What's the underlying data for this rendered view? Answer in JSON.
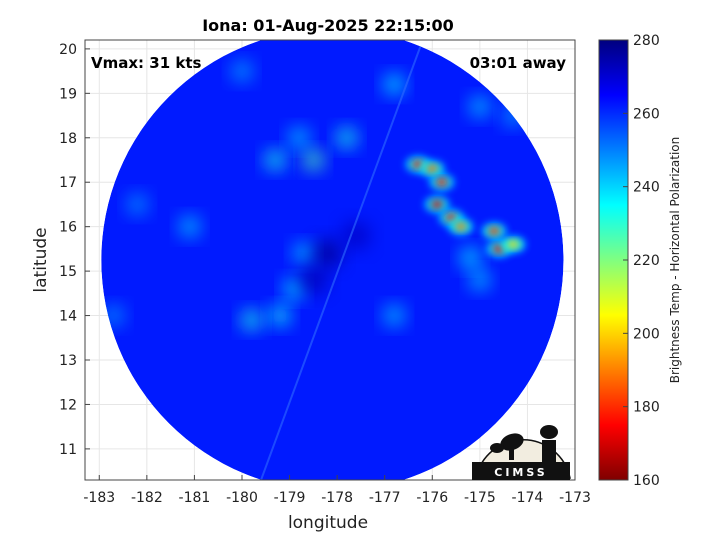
{
  "chart_data": {
    "type": "heatmap",
    "title": "Iona: 01-Aug-2025 22:15:00",
    "xlabel": "longitude",
    "ylabel": "latitude",
    "x_ticks": [
      -183,
      -182,
      -181,
      -180,
      -179,
      -178,
      -177,
      -176,
      -175,
      -174,
      -173
    ],
    "y_ticks": [
      11,
      12,
      13,
      14,
      15,
      16,
      17,
      18,
      19,
      20
    ],
    "xlim": [
      -183.3,
      -173
    ],
    "ylim": [
      10.3,
      20.2
    ],
    "colorbar": {
      "label": "Brightness Temp - Horizontal Polarization",
      "ticks": [
        160,
        180,
        200,
        220,
        240,
        260,
        280
      ],
      "range": [
        160,
        280
      ],
      "colormap": "jet"
    },
    "annotations": {
      "vmax": "Vmax: 31 kts",
      "time_away": "03:01 away"
    },
    "swath_center": [
      -178.1,
      15.25
    ],
    "swath_radius_deg": 5.2,
    "background_temp": 262,
    "features": [
      {
        "lon": -176.8,
        "lat": 19.2,
        "temp": 236
      },
      {
        "lon": -175.0,
        "lat": 18.7,
        "temp": 240
      },
      {
        "lon": -174.3,
        "lat": 18.5,
        "temp": 244
      },
      {
        "lon": -176.3,
        "lat": 17.4,
        "temp": 178
      },
      {
        "lon": -176.0,
        "lat": 17.3,
        "temp": 188
      },
      {
        "lon": -175.8,
        "lat": 17.0,
        "temp": 176
      },
      {
        "lon": -175.9,
        "lat": 16.5,
        "temp": 172
      },
      {
        "lon": -175.6,
        "lat": 16.2,
        "temp": 178
      },
      {
        "lon": -175.4,
        "lat": 16.0,
        "temp": 190
      },
      {
        "lon": -174.7,
        "lat": 15.9,
        "temp": 182
      },
      {
        "lon": -174.6,
        "lat": 15.5,
        "temp": 174
      },
      {
        "lon": -174.3,
        "lat": 15.6,
        "temp": 200
      },
      {
        "lon": -175.2,
        "lat": 15.3,
        "temp": 236
      },
      {
        "lon": -175.0,
        "lat": 14.8,
        "temp": 240
      },
      {
        "lon": -178.5,
        "lat": 17.5,
        "temp": 226
      },
      {
        "lon": -179.3,
        "lat": 17.5,
        "temp": 232
      },
      {
        "lon": -177.8,
        "lat": 18.0,
        "temp": 232
      },
      {
        "lon": -178.8,
        "lat": 18.0,
        "temp": 240
      },
      {
        "lon": -179.8,
        "lat": 13.9,
        "temp": 232
      },
      {
        "lon": -179.2,
        "lat": 14.0,
        "temp": 234
      },
      {
        "lon": -178.9,
        "lat": 14.6,
        "temp": 236
      },
      {
        "lon": -178.7,
        "lat": 15.4,
        "temp": 240
      },
      {
        "lon": -176.8,
        "lat": 14.0,
        "temp": 240
      },
      {
        "lon": -181.1,
        "lat": 16.0,
        "temp": 240
      },
      {
        "lon": -182.2,
        "lat": 16.5,
        "temp": 246
      },
      {
        "lon": -182.7,
        "lat": 14.0,
        "temp": 246
      },
      {
        "lon": -180.0,
        "lat": 19.5,
        "temp": 244
      },
      {
        "lon": -178.2,
        "lat": 15.4,
        "temp": 278
      },
      {
        "lon": -178.5,
        "lat": 14.8,
        "temp": 274
      },
      {
        "lon": -177.6,
        "lat": 15.8,
        "temp": 272
      }
    ],
    "logo_text": "CIMSS"
  }
}
